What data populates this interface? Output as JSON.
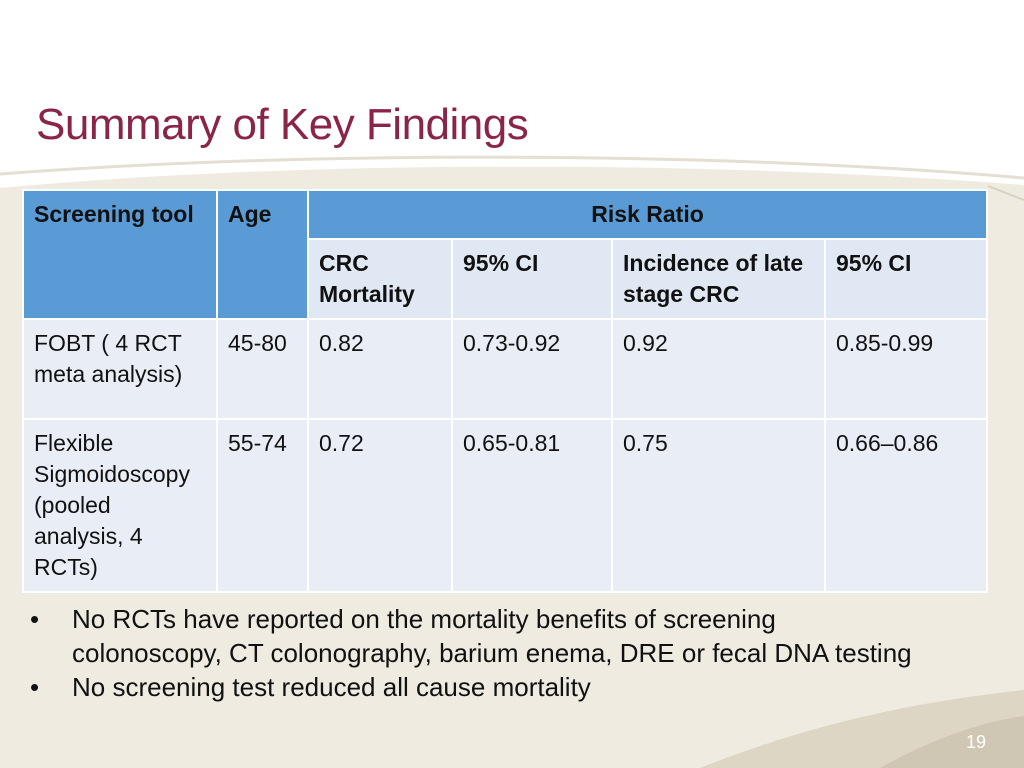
{
  "slide": {
    "title": "Summary of Key Findings",
    "page_number": "19"
  },
  "table": {
    "header": {
      "screening_tool": "Screening tool",
      "age": "Age",
      "risk_ratio": "Risk Ratio",
      "crc_mortality": "CRC Mortality",
      "ci_1": "95% CI",
      "incidence": "Incidence of late stage CRC",
      "ci_2": "95% CI"
    },
    "rows": [
      {
        "tool": "FOBT ( 4 RCT meta analysis)",
        "age": "45-80",
        "crc_mortality": "0.82",
        "ci_1": "0.73-0.92",
        "incidence": "0.92",
        "ci_2": "0.85-0.99"
      },
      {
        "tool": "Flexible Sigmoidoscopy (pooled analysis, 4 RCTs)",
        "age": "55-74",
        "crc_mortality": "0.72",
        "ci_1": "0.65-0.81",
        "incidence": "0.75",
        "ci_2": "0.66–0.86"
      }
    ]
  },
  "bullets": [
    {
      "marker": "•",
      "text": "No RCTs have reported on the mortality benefits of screening colonoscopy, CT colonography, barium enema, DRE or fecal DNA testing"
    },
    {
      "marker": "•",
      "text": "No screening test reduced all cause mortality"
    }
  ],
  "colors": {
    "title": "#8b2449",
    "header_fill": "#5b9bd5",
    "subheader_fill": "#dfe8f3",
    "row_fill": "#e9eef6",
    "background_band": "#efebe0"
  }
}
